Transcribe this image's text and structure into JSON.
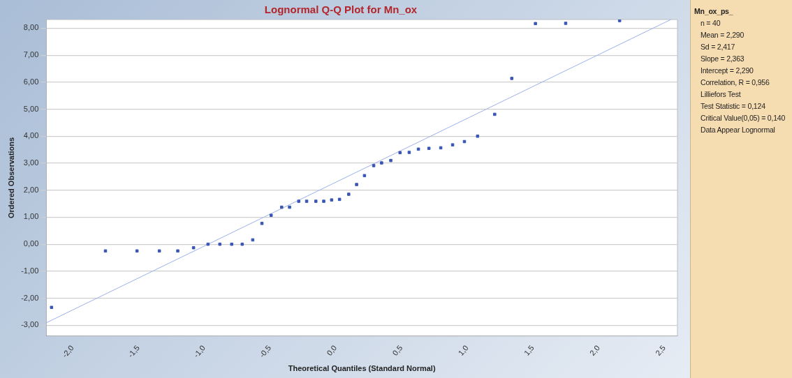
{
  "chart_data": {
    "type": "scatter",
    "title": "Lognormal Q-Q Plot for Mn_ox",
    "xlabel": "Theoretical Quantiles (Standard Normal)",
    "ylabel": "Ordered Observations",
    "series": [
      {
        "type": "scatter",
        "color": "#3a56b4",
        "marker": "square",
        "x": [
          -2.16,
          -1.75,
          -1.51,
          -1.34,
          -1.2,
          -1.08,
          -0.97,
          -0.88,
          -0.79,
          -0.71,
          -0.63,
          -0.56,
          -0.49,
          -0.41,
          -0.35,
          -0.28,
          -0.22,
          -0.15,
          -0.09,
          -0.03,
          0.03,
          0.1,
          0.16,
          0.22,
          0.29,
          0.35,
          0.42,
          0.49,
          0.56,
          0.63,
          0.71,
          0.8,
          0.89,
          0.98,
          1.08,
          1.21,
          1.34,
          1.52,
          1.75,
          2.16
        ],
        "values": [
          -2.34,
          -0.25,
          -0.25,
          -0.25,
          -0.25,
          -0.13,
          0,
          0,
          0,
          0,
          0.16,
          0.77,
          1.07,
          1.37,
          1.37,
          1.59,
          1.59,
          1.59,
          1.59,
          1.64,
          1.66,
          1.85,
          2.21,
          2.54,
          2.91,
          3.01,
          3.1,
          3.39,
          3.4,
          3.52,
          3.55,
          3.57,
          3.68,
          3.8,
          4.0,
          4.81,
          6.14,
          8.17,
          8.18,
          8.28
        ]
      },
      {
        "type": "line",
        "color": "#9db0ea",
        "marker": "none",
        "line_style": "solid",
        "x": [
          -2.2,
          2.55
        ],
        "values": [
          -2.91,
          8.32
        ]
      }
    ],
    "xlim": [
      -2.2,
      2.6
    ],
    "xticks": [
      {
        "value": -2,
        "label": "-2,0"
      },
      {
        "value": -1.5,
        "label": "-1,5"
      },
      {
        "value": -1,
        "label": "-1,0"
      },
      {
        "value": -0.5,
        "label": "-0,5"
      },
      {
        "value": 0,
        "label": "0,0"
      },
      {
        "value": 0.5,
        "label": "0,5"
      },
      {
        "value": 1,
        "label": "1,0"
      },
      {
        "value": 1.5,
        "label": "1,5"
      },
      {
        "value": 2,
        "label": "2,0"
      },
      {
        "value": 2.5,
        "label": "2,5"
      }
    ],
    "ylim": [
      -3.4,
      8.32
    ],
    "yticks": [
      {
        "value": -3,
        "label": "-3,00"
      },
      {
        "value": -2,
        "label": "-2,00"
      },
      {
        "value": -1,
        "label": "-1,00"
      },
      {
        "value": 0,
        "label": "0,00"
      },
      {
        "value": 1,
        "label": "1,00"
      },
      {
        "value": 2,
        "label": "2,00"
      },
      {
        "value": 3,
        "label": "3,00"
      },
      {
        "value": 4,
        "label": "4,00"
      },
      {
        "value": 5,
        "label": "5,00"
      },
      {
        "value": 6,
        "label": "6,00"
      },
      {
        "value": 7,
        "label": "7,00"
      },
      {
        "value": 8,
        "label": "8,00"
      }
    ],
    "grid": "y",
    "legend": false,
    "annotations": [
      "Mn_ox_ps_",
      "n = 40",
      "Mean = 2,290",
      "Sd = 2,417",
      "Slope = 2,363",
      "Intercept = 2,290",
      "Correlation, R = 0,956",
      "Lilliefors Test",
      "Test Statistic = 0,124",
      "Critical Value(0,05) = 0,140",
      "Data Appear Lognormal"
    ]
  }
}
